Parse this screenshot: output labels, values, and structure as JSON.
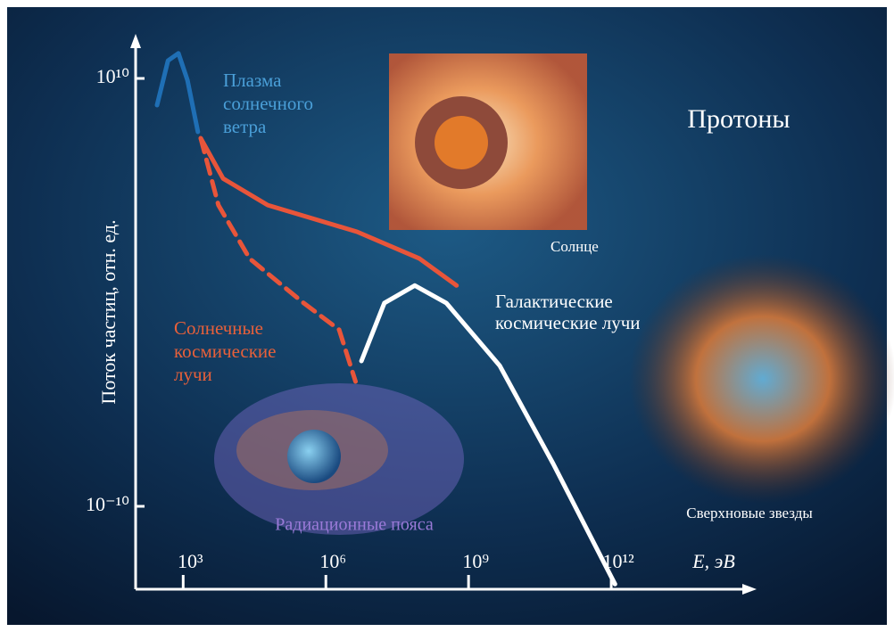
{
  "chart_data": {
    "type": "line",
    "title": "Протоны",
    "x_label": "E, эВ",
    "y_label": "Поток частиц, отн. ед.",
    "x_scale": "log",
    "y_scale": "log",
    "xlim": [
      100,
      1000000000000000.0
    ],
    "ylim": [
      1e-14,
      1000000000000.0
    ],
    "xticks": [
      {
        "value": 1000,
        "label": "10³"
      },
      {
        "value": 1000000,
        "label": "10⁶"
      },
      {
        "value": 1000000000,
        "label": "10⁹"
      },
      {
        "value": 1000000000000,
        "label": "10¹²"
      }
    ],
    "yticks": [
      {
        "value": 1e-10,
        "label": "10⁻¹⁰"
      },
      {
        "value": 10000000000,
        "label": "10¹⁰"
      }
    ],
    "series": [
      {
        "color": "#1f6fb5",
        "dash": false,
        "x": [
          282,
          479,
          794,
          1230,
          2040
        ],
        "values": [
          560000000,
          68000000000,
          150000000000,
          8300000000,
          32000000
        ]
      },
      {
        "color": "#e8553a",
        "dash": false,
        "x": [
          2340,
          6920,
          60000,
          4500000,
          93000000,
          560000000
        ],
        "values": [
          16000000,
          210000,
          12000,
          680,
          38,
          2.1
        ]
      },
      {
        "color": "#e8553a",
        "dash": true,
        "x": [
          2340,
          5500,
          25000,
          340000,
          1900000,
          4200000
        ],
        "values": [
          16000000,
          12000,
          38,
          0.32,
          0.018,
          6.8e-05
        ]
      },
      {
        "color": "#ffffff",
        "dash": false,
        "x": [
          5600000,
          17000000,
          74000000,
          340000000,
          4500000000,
          60000000000,
          1200000000000
        ],
        "values": [
          0.00062,
          0.32,
          2.1,
          0.32,
          0.00038,
          1e-08,
          2.3e-14
        ]
      }
    ],
    "annotations": [
      {
        "lines": [
          "Плазма",
          "солнечного",
          "ветра"
        ],
        "color": "#4a9fd8"
      },
      {
        "lines": [
          "Солнечные",
          "космические",
          "лучи"
        ],
        "color": "#e8603a"
      },
      {
        "lines": [
          "Галактические",
          "космические лучи"
        ],
        "color": "#ffffff"
      },
      {
        "lines": [
          "Солнце"
        ],
        "color": "#ffffff"
      },
      {
        "lines": [
          "Радиационные пояса"
        ],
        "color": "#9a7ad8"
      },
      {
        "lines": [
          "Сверхновые звезды"
        ],
        "color": "#ffffff"
      }
    ]
  }
}
